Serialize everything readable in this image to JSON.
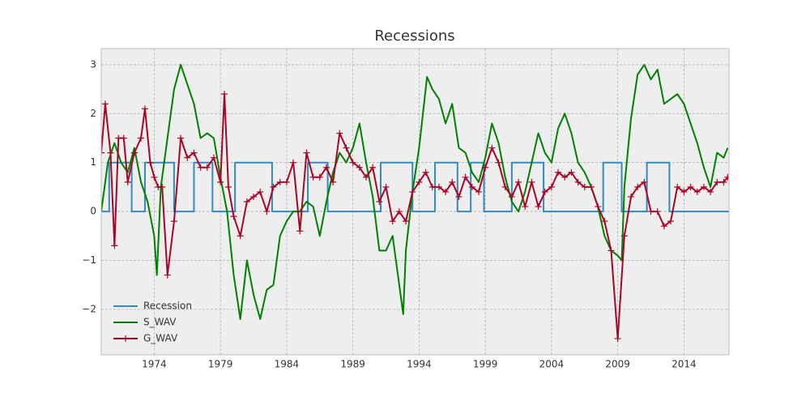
{
  "chart_data": {
    "type": "line",
    "title": "Recessions",
    "xlim": [
      1970,
      2017.4
    ],
    "ylim": [
      -2.93,
      3.33
    ],
    "xticks": [
      1974,
      1979,
      1984,
      1989,
      1994,
      1999,
      2004,
      2009,
      2014
    ],
    "yticks": [
      {
        "value": -2,
        "label": "−2"
      },
      {
        "value": -1,
        "label": "−1"
      },
      0,
      1,
      2,
      3
    ],
    "grid": true,
    "legend": "lower left",
    "series": [
      {
        "name": "Recession",
        "color": "#348abd",
        "x": [
          1970,
          1970.6,
          1970.6,
          1972.3,
          1972.3,
          1973.3,
          1973.3,
          1975.5,
          1975.5,
          1977.0,
          1977.0,
          1978.4,
          1978.4,
          1980.1,
          1980.1,
          1982.9,
          1982.9,
          1985.6,
          1985.6,
          1987.1,
          1987.1,
          1991.1,
          1991.1,
          1993.5,
          1993.5,
          1995.2,
          1995.2,
          1996.9,
          1996.9,
          1997.9,
          1997.9,
          1998.9,
          1998.9,
          2001.0,
          2001.0,
          2003.4,
          2003.4,
          2007.9,
          2007.9,
          2009.3,
          2009.3,
          2011.2,
          2011.2,
          2012.9,
          2012.9,
          2017.4
        ],
        "values": [
          0,
          0,
          1,
          1,
          0,
          0,
          1,
          1,
          0,
          0,
          1,
          1,
          0,
          0,
          1,
          1,
          0,
          0,
          1,
          1,
          0,
          0,
          1,
          1,
          0,
          0,
          1,
          1,
          0,
          0,
          1,
          1,
          0,
          0,
          1,
          1,
          0,
          0,
          1,
          1,
          0,
          0,
          1,
          1,
          0,
          0
        ]
      },
      {
        "name": "S_WAV",
        "color": "#008000",
        "x": [
          1970,
          1970.5,
          1971,
          1971.5,
          1972,
          1972.5,
          1973,
          1973.5,
          1974,
          1974.2,
          1974.5,
          1975,
          1975.5,
          1976,
          1976.5,
          1977,
          1977.5,
          1978,
          1978.5,
          1979,
          1979.5,
          1980,
          1980.5,
          1981,
          1981.5,
          1982,
          1982.5,
          1983,
          1983.5,
          1984,
          1984.5,
          1985,
          1985.5,
          1986,
          1986.5,
          1987,
          1987.5,
          1988,
          1988.5,
          1989,
          1989.5,
          1990,
          1990.5,
          1991,
          1991.5,
          1992,
          1992.5,
          1992.8,
          1993,
          1993.5,
          1994,
          1994.6,
          1995,
          1995.5,
          1996,
          1996.5,
          1997,
          1997.5,
          1998,
          1998.5,
          1999,
          1999.5,
          2000,
          2000.5,
          2001,
          2001.5,
          2002,
          2002.5,
          2003,
          2003.5,
          2004,
          2004.5,
          2005,
          2005.5,
          2006,
          2006.5,
          2007,
          2007.5,
          2008,
          2008.5,
          2009,
          2009.3,
          2009.5,
          2010,
          2010.5,
          2011,
          2011.5,
          2012,
          2012.5,
          2013,
          2013.5,
          2014,
          2014.5,
          2015,
          2015.5,
          2016,
          2016.5,
          2017,
          2017.3
        ],
        "values": [
          0.0,
          1.0,
          1.4,
          1.0,
          0.8,
          1.3,
          0.6,
          0.2,
          -0.5,
          -1.3,
          0.5,
          1.5,
          2.5,
          3.0,
          2.6,
          2.2,
          1.5,
          1.6,
          1.5,
          0.7,
          0.0,
          -1.3,
          -2.2,
          -1.0,
          -1.7,
          -2.2,
          -1.6,
          -1.5,
          -0.5,
          -0.2,
          0.0,
          0.0,
          0.2,
          0.1,
          -0.5,
          0.2,
          0.8,
          1.2,
          1.0,
          1.3,
          1.8,
          1.0,
          0.3,
          -0.8,
          -0.8,
          -0.5,
          -1.5,
          -2.1,
          -0.8,
          0.4,
          1.3,
          2.75,
          2.5,
          2.3,
          1.8,
          2.2,
          1.3,
          1.2,
          0.8,
          0.6,
          1.1,
          1.8,
          1.4,
          0.7,
          0.2,
          0.0,
          0.4,
          1.0,
          1.6,
          1.2,
          1.0,
          1.7,
          2.0,
          1.6,
          1.0,
          0.8,
          0.5,
          0.1,
          -0.5,
          -0.8,
          -0.9,
          -1.0,
          0.5,
          1.9,
          2.8,
          3.0,
          2.7,
          2.9,
          2.2,
          2.3,
          2.4,
          2.2,
          1.8,
          1.4,
          0.9,
          0.5,
          1.2,
          1.1,
          1.3
        ]
      },
      {
        "name": "G_WAV",
        "color": "#a60628",
        "x": [
          1970,
          1970.3,
          1970.7,
          1971,
          1971.3,
          1971.7,
          1972,
          1972.5,
          1973,
          1973.3,
          1973.7,
          1974,
          1974.3,
          1974.6,
          1975,
          1975.5,
          1976,
          1976.5,
          1977,
          1977.5,
          1978,
          1978.5,
          1979,
          1979.3,
          1979.6,
          1980,
          1980.5,
          1981,
          1981.5,
          1982,
          1982.5,
          1983,
          1983.5,
          1984,
          1984.5,
          1985,
          1985.5,
          1986,
          1986.5,
          1987,
          1987.5,
          1988,
          1988.5,
          1989,
          1989.5,
          1990,
          1990.5,
          1991,
          1991.5,
          1992,
          1992.5,
          1993,
          1993.5,
          1994,
          1994.5,
          1995,
          1995.5,
          1996,
          1996.5,
          1997,
          1997.5,
          1998,
          1998.5,
          1999,
          1999.5,
          2000,
          2000.5,
          2001,
          2001.5,
          2002,
          2002.5,
          2003,
          2003.5,
          2004,
          2004.5,
          2005,
          2005.5,
          2006,
          2006.5,
          2007,
          2007.5,
          2008,
          2008.5,
          2009,
          2009.5,
          2010,
          2010.5,
          2011,
          2011.5,
          2012,
          2012.5,
          2013,
          2013.5,
          2014,
          2014.5,
          2015,
          2015.5,
          2016,
          2016.5,
          2017,
          2017.3
        ],
        "values": [
          1.2,
          2.2,
          1.2,
          -0.7,
          1.5,
          1.5,
          0.6,
          1.2,
          1.5,
          2.1,
          1.0,
          0.7,
          0.5,
          0.5,
          -1.3,
          -0.2,
          1.5,
          1.1,
          1.2,
          0.9,
          0.9,
          1.1,
          0.6,
          2.4,
          0.5,
          -0.1,
          -0.5,
          0.2,
          0.3,
          0.4,
          0.0,
          0.5,
          0.6,
          0.6,
          1.0,
          -0.4,
          1.2,
          0.7,
          0.7,
          0.9,
          0.6,
          1.6,
          1.3,
          1.0,
          0.9,
          0.7,
          0.9,
          0.2,
          0.5,
          -0.2,
          0.0,
          -0.2,
          0.4,
          0.6,
          0.8,
          0.5,
          0.5,
          0.4,
          0.6,
          0.3,
          0.7,
          0.5,
          0.4,
          0.9,
          1.3,
          1.0,
          0.5,
          0.3,
          0.6,
          0.1,
          0.6,
          0.1,
          0.4,
          0.5,
          0.8,
          0.7,
          0.8,
          0.6,
          0.5,
          0.5,
          0.1,
          -0.2,
          -0.8,
          -2.6,
          -0.5,
          0.3,
          0.5,
          0.6,
          0.0,
          0.0,
          -0.3,
          -0.2,
          0.5,
          0.4,
          0.5,
          0.4,
          0.5,
          0.4,
          0.6,
          0.6,
          0.7
        ]
      }
    ]
  }
}
